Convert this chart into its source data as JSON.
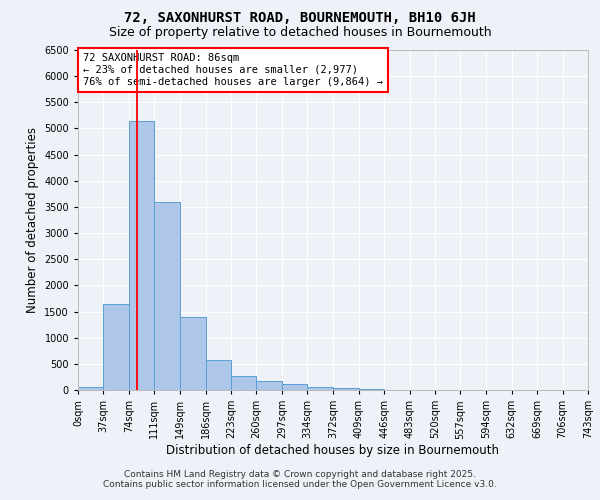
{
  "title1": "72, SAXONHURST ROAD, BOURNEMOUTH, BH10 6JH",
  "title2": "Size of property relative to detached houses in Bournemouth",
  "xlabel": "Distribution of detached houses by size in Bournemouth",
  "ylabel": "Number of detached properties",
  "bar_left_edges": [
    0,
    37,
    74,
    111,
    149,
    186,
    223,
    260,
    297,
    334,
    372,
    409,
    446,
    483,
    520,
    557,
    594,
    632,
    669,
    706
  ],
  "bar_widths": [
    37,
    37,
    37,
    38,
    37,
    37,
    37,
    37,
    37,
    38,
    37,
    37,
    37,
    37,
    37,
    37,
    38,
    37,
    37,
    37
  ],
  "bar_heights": [
    50,
    1650,
    5150,
    3600,
    1400,
    580,
    260,
    180,
    120,
    60,
    30,
    10,
    5,
    0,
    0,
    0,
    0,
    0,
    0,
    0
  ],
  "bar_color": "#aec6e8",
  "bar_edgecolor": "#5a9fd4",
  "xlim": [
    0,
    743
  ],
  "ylim": [
    0,
    6500
  ],
  "yticks": [
    0,
    500,
    1000,
    1500,
    2000,
    2500,
    3000,
    3500,
    4000,
    4500,
    5000,
    5500,
    6000,
    6500
  ],
  "xtick_labels": [
    "0sqm",
    "37sqm",
    "74sqm",
    "111sqm",
    "149sqm",
    "186sqm",
    "223sqm",
    "260sqm",
    "297sqm",
    "334sqm",
    "372sqm",
    "409sqm",
    "446sqm",
    "483sqm",
    "520sqm",
    "557sqm",
    "594sqm",
    "632sqm",
    "669sqm",
    "706sqm",
    "743sqm"
  ],
  "xtick_positions": [
    0,
    37,
    74,
    111,
    149,
    186,
    223,
    260,
    297,
    334,
    372,
    409,
    446,
    483,
    520,
    557,
    594,
    632,
    669,
    706,
    743
  ],
  "red_line_x": 86,
  "annotation_title": "72 SAXONHURST ROAD: 86sqm",
  "annotation_line2": "← 23% of detached houses are smaller (2,977)",
  "annotation_line3": "76% of semi-detached houses are larger (9,864) →",
  "footer_line1": "Contains HM Land Registry data © Crown copyright and database right 2025.",
  "footer_line2": "Contains public sector information licensed under the Open Government Licence v3.0.",
  "bg_color": "#eef2f8",
  "grid_color": "#ffffff",
  "title1_fontsize": 10,
  "title2_fontsize": 9,
  "axis_label_fontsize": 8.5,
  "tick_fontsize": 7,
  "annotation_fontsize": 7.5,
  "footer_fontsize": 6.5
}
